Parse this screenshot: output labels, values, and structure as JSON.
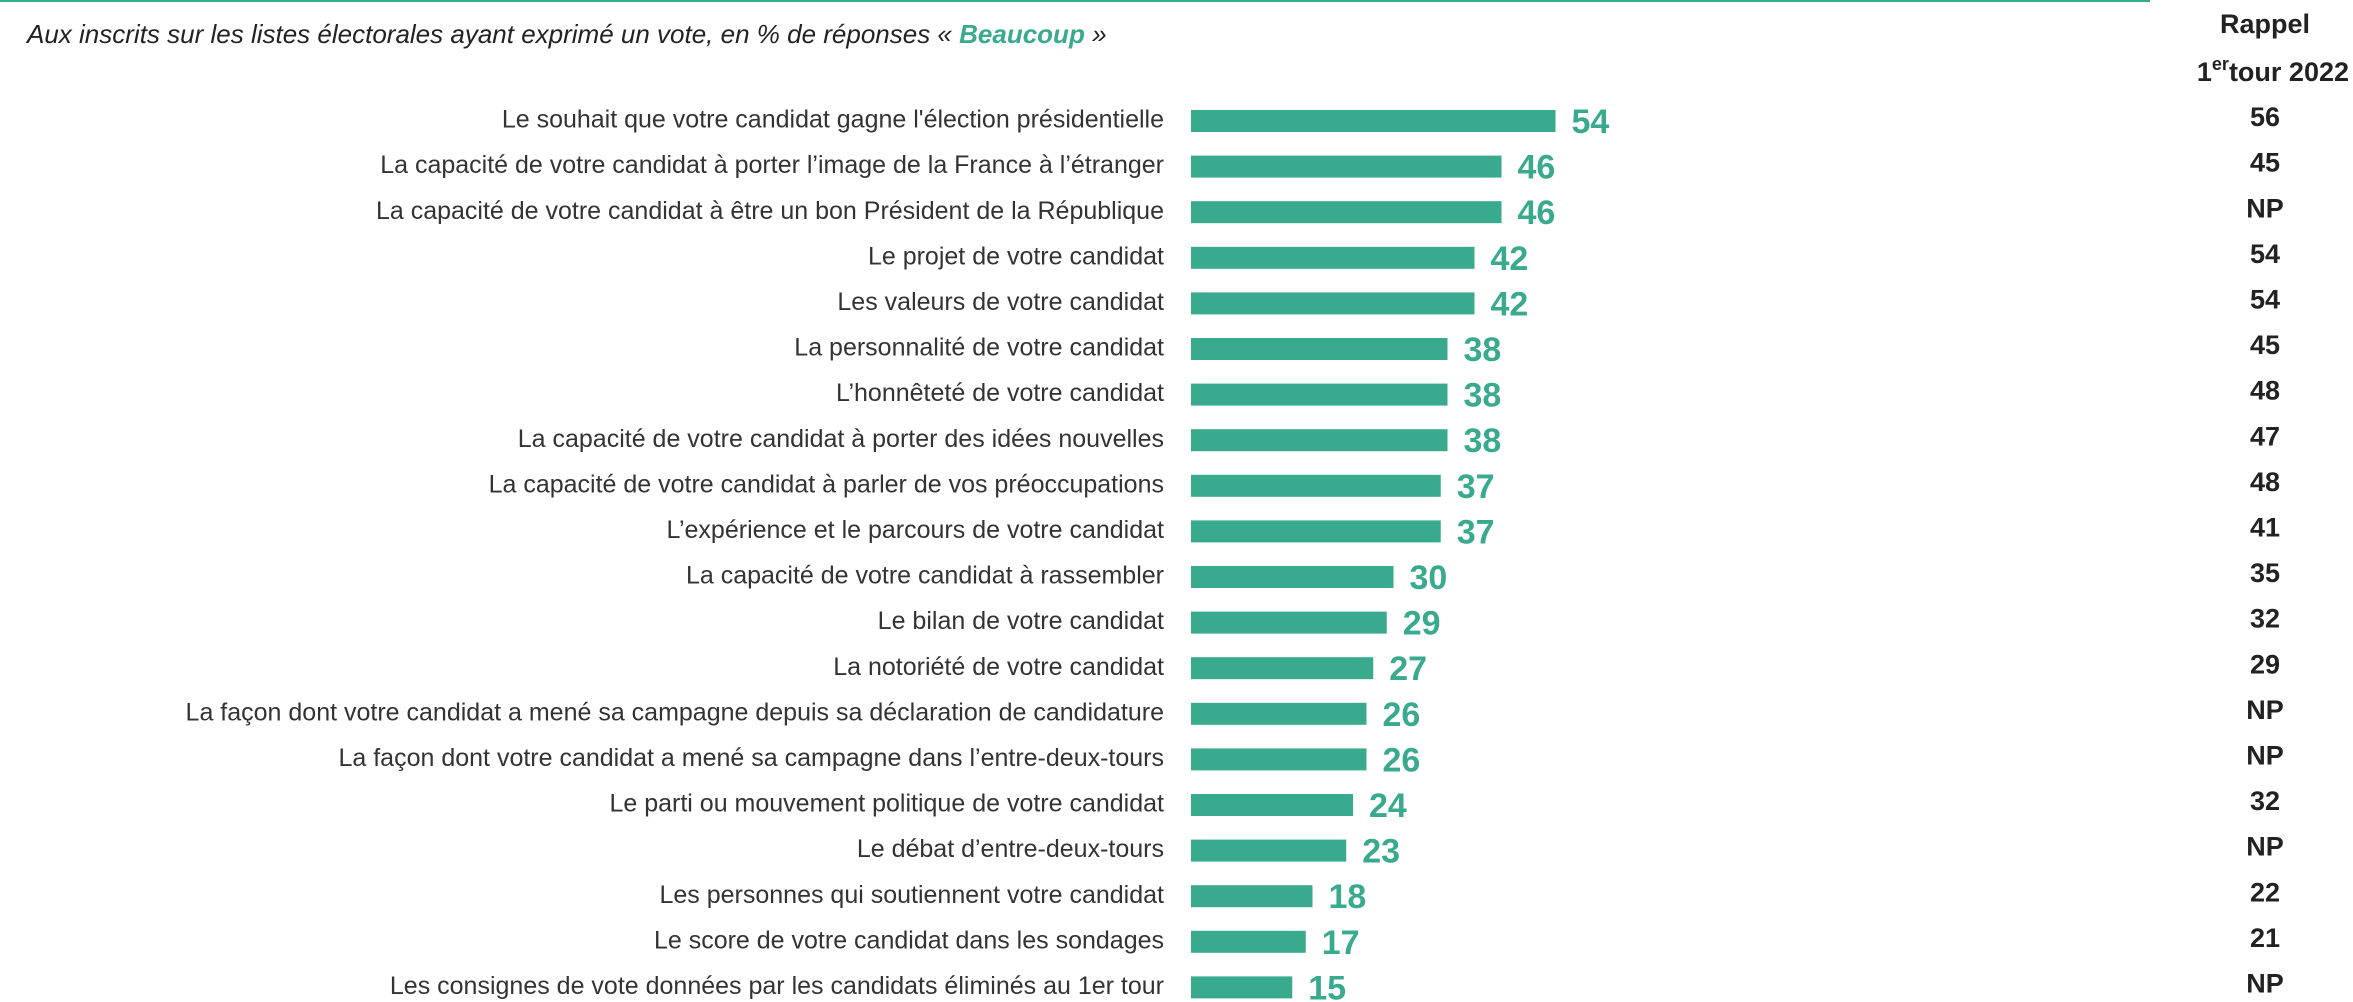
{
  "chart_data": {
    "type": "barh",
    "subtitle": "Aux inscrits sur les listes électorales ayant exprimé un vote, en % de réponses «",
    "subtitle_highlight": "Beaucoup",
    "subtitle_end": "»",
    "categories": [
      "Le souhait que votre candidat gagne l'élection présidentielle",
      "La capacité de votre candidat à porter l’image de la France à l’étranger",
      "La capacité de votre candidat à être un bon Président de la République",
      "Le projet de votre candidat",
      "Les valeurs de votre candidat",
      "La personnalité de votre candidat",
      "L’honnêteté de votre candidat",
      "La capacité de votre candidat à porter des idées nouvelles",
      "La capacité de votre candidat à parler de vos préoccupations",
      "L’expérience et le parcours de votre candidat",
      "La capacité de votre candidat à rassembler",
      "Le bilan de votre candidat",
      "La notoriété de votre candidat",
      "La façon dont votre candidat a mené sa campagne depuis sa déclaration de candidature",
      "La façon dont votre candidat a mené sa campagne dans l’entre-deux-tours",
      "Le parti ou mouvement politique de votre candidat",
      "Le débat d’entre-deux-tours",
      "Les personnes qui soutiennent votre candidat",
      "Le score de votre candidat dans les sondages",
      "Les consignes de vote données par les candidats éliminés au 1er tour"
    ],
    "values": [
      54,
      46,
      46,
      42,
      42,
      38,
      38,
      38,
      37,
      37,
      30,
      29,
      27,
      26,
      26,
      24,
      23,
      18,
      17,
      15
    ],
    "color": "#3aaa8e",
    "xlim": [
      0,
      100
    ],
    "recall_title": "Rappel",
    "recall_round": "1",
    "recall_round_sup": "er",
    "recall_round_rest": "tour 2022",
    "recall_values": [
      56,
      45,
      "NP",
      54,
      54,
      45,
      48,
      47,
      48,
      41,
      35,
      32,
      29,
      "NP",
      "NP",
      32,
      "NP",
      22,
      21,
      "NP"
    ]
  }
}
